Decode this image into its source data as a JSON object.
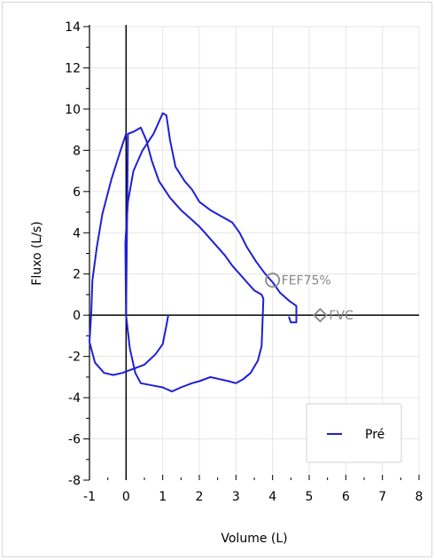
{
  "chart_data": {
    "type": "line",
    "title": "",
    "xlabel": "Volume (L)",
    "ylabel": "Fluxo (L/s)",
    "xlim": [
      -1,
      8
    ],
    "ylim": [
      -8,
      14
    ],
    "x_ticks": [
      -1,
      0,
      1,
      2,
      3,
      4,
      5,
      6,
      7,
      8
    ],
    "y_ticks": [
      -8,
      -6,
      -4,
      -2,
      0,
      2,
      4,
      6,
      8,
      10,
      12,
      14
    ],
    "grid": true,
    "legend_position": "bottom-right",
    "series": [
      {
        "name": "Pré",
        "color": "#1f1fd6",
        "points": [
          [
            0.0,
            0.0
          ],
          [
            -0.02,
            3.5
          ],
          [
            0.05,
            5.5
          ],
          [
            0.2,
            7.0
          ],
          [
            0.45,
            8.0
          ],
          [
            0.75,
            8.8
          ],
          [
            1.0,
            9.8
          ],
          [
            1.1,
            9.7
          ],
          [
            1.2,
            8.5
          ],
          [
            1.35,
            7.2
          ],
          [
            1.6,
            6.5
          ],
          [
            1.8,
            6.1
          ],
          [
            2.0,
            5.5
          ],
          [
            2.3,
            5.1
          ],
          [
            2.6,
            4.8
          ],
          [
            2.9,
            4.5
          ],
          [
            3.1,
            4.0
          ],
          [
            3.3,
            3.3
          ],
          [
            3.55,
            2.6
          ],
          [
            3.8,
            2.0
          ],
          [
            4.0,
            1.6
          ],
          [
            4.2,
            1.1
          ],
          [
            4.45,
            0.7
          ],
          [
            4.65,
            0.45
          ],
          [
            4.65,
            -0.35
          ],
          [
            4.5,
            -0.35
          ],
          [
            4.45,
            -0.1
          ]
        ]
      },
      {
        "name": "Pré",
        "color": "#1f1fd6",
        "points": [
          [
            0.0,
            0.0
          ],
          [
            0.05,
            8.8
          ],
          [
            0.2,
            8.9
          ],
          [
            0.4,
            9.1
          ],
          [
            0.55,
            8.5
          ],
          [
            0.7,
            7.5
          ],
          [
            0.9,
            6.5
          ],
          [
            1.2,
            5.7
          ],
          [
            1.5,
            5.1
          ],
          [
            1.75,
            4.7
          ],
          [
            2.0,
            4.3
          ],
          [
            2.2,
            3.9
          ],
          [
            2.45,
            3.4
          ],
          [
            2.7,
            2.9
          ],
          [
            2.9,
            2.4
          ],
          [
            3.1,
            2.0
          ],
          [
            3.3,
            1.6
          ],
          [
            3.5,
            1.2
          ],
          [
            3.7,
            1.0
          ],
          [
            3.75,
            0.8
          ],
          [
            3.7,
            -1.5
          ],
          [
            3.6,
            -2.2
          ],
          [
            3.4,
            -2.8
          ],
          [
            3.2,
            -3.1
          ],
          [
            3.0,
            -3.3
          ],
          [
            2.8,
            -3.2
          ],
          [
            2.55,
            -3.1
          ],
          [
            2.3,
            -3.0
          ],
          [
            2.0,
            -3.2
          ],
          [
            1.8,
            -3.3
          ],
          [
            1.5,
            -3.5
          ],
          [
            1.25,
            -3.7
          ],
          [
            1.0,
            -3.5
          ],
          [
            0.7,
            -3.4
          ],
          [
            0.4,
            -3.3
          ],
          [
            0.25,
            -2.8
          ],
          [
            0.1,
            -1.6
          ],
          [
            0.0,
            0.0
          ]
        ]
      },
      {
        "name": "Pré",
        "color": "#1f1fd6",
        "points": [
          [
            0.0,
            8.8
          ],
          [
            -0.15,
            8.0
          ],
          [
            -0.4,
            6.6
          ],
          [
            -0.65,
            4.9
          ],
          [
            -0.8,
            3.3
          ],
          [
            -0.92,
            1.7
          ],
          [
            -0.95,
            0.2
          ],
          [
            -1.0,
            -1.3
          ],
          [
            -0.85,
            -2.3
          ],
          [
            -0.6,
            -2.8
          ],
          [
            -0.35,
            -2.9
          ],
          [
            -0.1,
            -2.8
          ],
          [
            0.2,
            -2.6
          ],
          [
            0.5,
            -2.4
          ],
          [
            0.8,
            -1.9
          ],
          [
            1.0,
            -1.4
          ],
          [
            1.1,
            -0.5
          ],
          [
            1.15,
            0.0
          ]
        ]
      }
    ],
    "markers": [
      {
        "label": "FEF75%",
        "x": 4.0,
        "y": 1.7,
        "shape": "circle",
        "color": "#888888"
      },
      {
        "label": "FVC",
        "x": 5.3,
        "y": 0.0,
        "shape": "diamond",
        "color": "#888888"
      }
    ]
  }
}
